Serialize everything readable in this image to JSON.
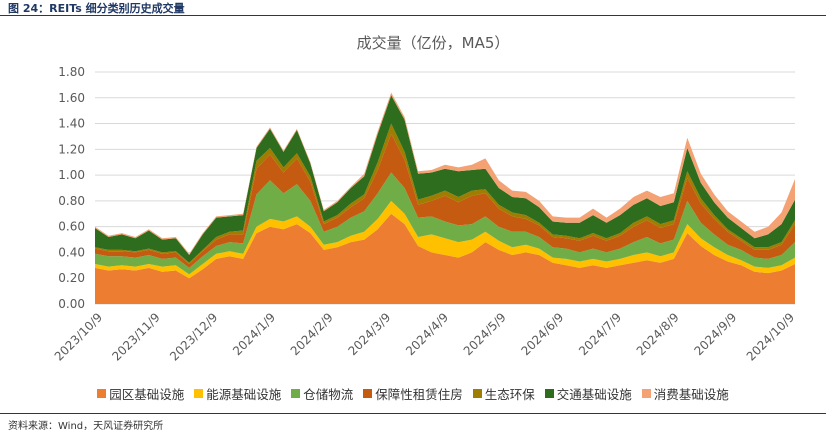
{
  "figure": {
    "label": "图 24：REITs 细分类别历史成交量",
    "source": "资料来源：Wind，天风证券研究所"
  },
  "chart_data": {
    "type": "area",
    "stacked": true,
    "title": "成交量（亿份，MA5）",
    "xlabel": "",
    "ylabel": "",
    "ylim": [
      0,
      1.8
    ],
    "y_ticks": [
      "0.00",
      "0.20",
      "0.40",
      "0.60",
      "0.80",
      "1.00",
      "1.20",
      "1.40",
      "1.60",
      "1.80"
    ],
    "x_ticks": [
      "2023/10/9",
      "2023/11/9",
      "2023/12/9",
      "2024/1/9",
      "2024/2/9",
      "2024/3/9",
      "2024/4/9",
      "2024/5/9",
      "2024/6/9",
      "2024/7/9",
      "2024/8/9",
      "2024/9/9",
      "2024/10/9"
    ],
    "grid": "horizontal",
    "legend_position": "bottom",
    "x": [
      "2023/10/9",
      "2023/10/16",
      "2023/10/23",
      "2023/10/30",
      "2023/11/6",
      "2023/11/13",
      "2023/11/20",
      "2023/11/27",
      "2023/12/4",
      "2023/12/11",
      "2023/12/18",
      "2023/12/25",
      "2024/1/1",
      "2024/1/8",
      "2024/1/15",
      "2024/1/22",
      "2024/1/29",
      "2024/2/5",
      "2024/2/12",
      "2024/2/19",
      "2024/2/26",
      "2024/3/4",
      "2024/3/11",
      "2024/3/18",
      "2024/3/25",
      "2024/4/1",
      "2024/4/8",
      "2024/4/15",
      "2024/4/22",
      "2024/4/29",
      "2024/5/6",
      "2024/5/13",
      "2024/5/20",
      "2024/5/27",
      "2024/6/3",
      "2024/6/10",
      "2024/6/17",
      "2024/6/24",
      "2024/7/1",
      "2024/7/8",
      "2024/7/15",
      "2024/7/22",
      "2024/7/29",
      "2024/8/5",
      "2024/8/12",
      "2024/8/19",
      "2024/8/26",
      "2024/9/2",
      "2024/9/9",
      "2024/9/16",
      "2024/9/23",
      "2024/9/30",
      "2024/10/9"
    ],
    "series": [
      {
        "name": "园区基础设施",
        "color": "#ed7d31",
        "values": [
          0.28,
          0.26,
          0.27,
          0.26,
          0.28,
          0.25,
          0.26,
          0.2,
          0.27,
          0.35,
          0.37,
          0.35,
          0.55,
          0.6,
          0.58,
          0.62,
          0.55,
          0.42,
          0.44,
          0.48,
          0.5,
          0.58,
          0.7,
          0.62,
          0.45,
          0.4,
          0.38,
          0.36,
          0.4,
          0.48,
          0.42,
          0.38,
          0.4,
          0.38,
          0.32,
          0.3,
          0.28,
          0.3,
          0.28,
          0.3,
          0.32,
          0.34,
          0.32,
          0.35,
          0.55,
          0.45,
          0.38,
          0.33,
          0.3,
          0.25,
          0.24,
          0.26,
          0.31
        ]
      },
      {
        "name": "能源基础设施",
        "color": "#ffc000",
        "values": [
          0.03,
          0.03,
          0.03,
          0.03,
          0.03,
          0.04,
          0.04,
          0.03,
          0.04,
          0.04,
          0.04,
          0.04,
          0.05,
          0.06,
          0.06,
          0.06,
          0.05,
          0.04,
          0.04,
          0.05,
          0.06,
          0.08,
          0.1,
          0.08,
          0.07,
          0.14,
          0.13,
          0.12,
          0.1,
          0.08,
          0.07,
          0.06,
          0.06,
          0.05,
          0.04,
          0.05,
          0.05,
          0.05,
          0.05,
          0.05,
          0.06,
          0.06,
          0.05,
          0.05,
          0.07,
          0.06,
          0.06,
          0.05,
          0.04,
          0.04,
          0.04,
          0.04,
          0.05
        ]
      },
      {
        "name": "仓储物流",
        "color": "#70ad47",
        "values": [
          0.08,
          0.08,
          0.07,
          0.07,
          0.07,
          0.06,
          0.06,
          0.05,
          0.06,
          0.06,
          0.07,
          0.08,
          0.25,
          0.3,
          0.22,
          0.25,
          0.2,
          0.1,
          0.12,
          0.14,
          0.16,
          0.2,
          0.22,
          0.2,
          0.15,
          0.14,
          0.13,
          0.13,
          0.12,
          0.12,
          0.11,
          0.12,
          0.1,
          0.09,
          0.08,
          0.08,
          0.07,
          0.08,
          0.07,
          0.08,
          0.1,
          0.12,
          0.1,
          0.1,
          0.18,
          0.12,
          0.1,
          0.08,
          0.08,
          0.07,
          0.07,
          0.08,
          0.12
        ]
      },
      {
        "name": "保障性租赁住房",
        "color": "#c55a11",
        "values": [
          0.04,
          0.04,
          0.04,
          0.04,
          0.04,
          0.04,
          0.04,
          0.03,
          0.04,
          0.05,
          0.06,
          0.07,
          0.2,
          0.2,
          0.16,
          0.2,
          0.15,
          0.06,
          0.07,
          0.08,
          0.1,
          0.18,
          0.3,
          0.22,
          0.1,
          0.12,
          0.2,
          0.18,
          0.22,
          0.18,
          0.14,
          0.12,
          0.1,
          0.09,
          0.08,
          0.08,
          0.09,
          0.1,
          0.09,
          0.1,
          0.12,
          0.13,
          0.12,
          0.12,
          0.18,
          0.15,
          0.12,
          0.1,
          0.07,
          0.06,
          0.07,
          0.08,
          0.14
        ]
      },
      {
        "name": "生态环保",
        "color": "#9e7d00",
        "values": [
          0.01,
          0.01,
          0.01,
          0.01,
          0.01,
          0.01,
          0.01,
          0.01,
          0.01,
          0.02,
          0.02,
          0.03,
          0.06,
          0.05,
          0.04,
          0.04,
          0.04,
          0.02,
          0.02,
          0.03,
          0.03,
          0.06,
          0.08,
          0.06,
          0.04,
          0.04,
          0.04,
          0.04,
          0.04,
          0.03,
          0.03,
          0.03,
          0.03,
          0.02,
          0.02,
          0.02,
          0.02,
          0.02,
          0.02,
          0.02,
          0.03,
          0.03,
          0.03,
          0.03,
          0.05,
          0.04,
          0.03,
          0.02,
          0.02,
          0.02,
          0.02,
          0.02,
          0.03
        ]
      },
      {
        "name": "交通基础设施",
        "color": "#2f6d1e",
        "values": [
          0.15,
          0.1,
          0.12,
          0.1,
          0.14,
          0.1,
          0.1,
          0.06,
          0.12,
          0.15,
          0.12,
          0.12,
          0.1,
          0.15,
          0.12,
          0.18,
          0.1,
          0.08,
          0.1,
          0.12,
          0.14,
          0.22,
          0.22,
          0.25,
          0.2,
          0.18,
          0.17,
          0.2,
          0.16,
          0.16,
          0.13,
          0.12,
          0.13,
          0.12,
          0.1,
          0.1,
          0.12,
          0.14,
          0.12,
          0.14,
          0.14,
          0.14,
          0.14,
          0.14,
          0.18,
          0.12,
          0.1,
          0.09,
          0.08,
          0.07,
          0.1,
          0.14,
          0.16
        ]
      },
      {
        "name": "消费基础设施",
        "color": "#f4a274",
        "values": [
          0.01,
          0.01,
          0.01,
          0.01,
          0.01,
          0.01,
          0.01,
          0.01,
          0.01,
          0.01,
          0.01,
          0.01,
          0.01,
          0.01,
          0.01,
          0.01,
          0.01,
          0.01,
          0.01,
          0.01,
          0.02,
          0.02,
          0.02,
          0.02,
          0.02,
          0.02,
          0.03,
          0.03,
          0.04,
          0.08,
          0.06,
          0.05,
          0.05,
          0.05,
          0.04,
          0.04,
          0.04,
          0.05,
          0.04,
          0.05,
          0.06,
          0.06,
          0.07,
          0.07,
          0.08,
          0.07,
          0.06,
          0.05,
          0.05,
          0.05,
          0.06,
          0.09,
          0.16
        ]
      }
    ]
  }
}
